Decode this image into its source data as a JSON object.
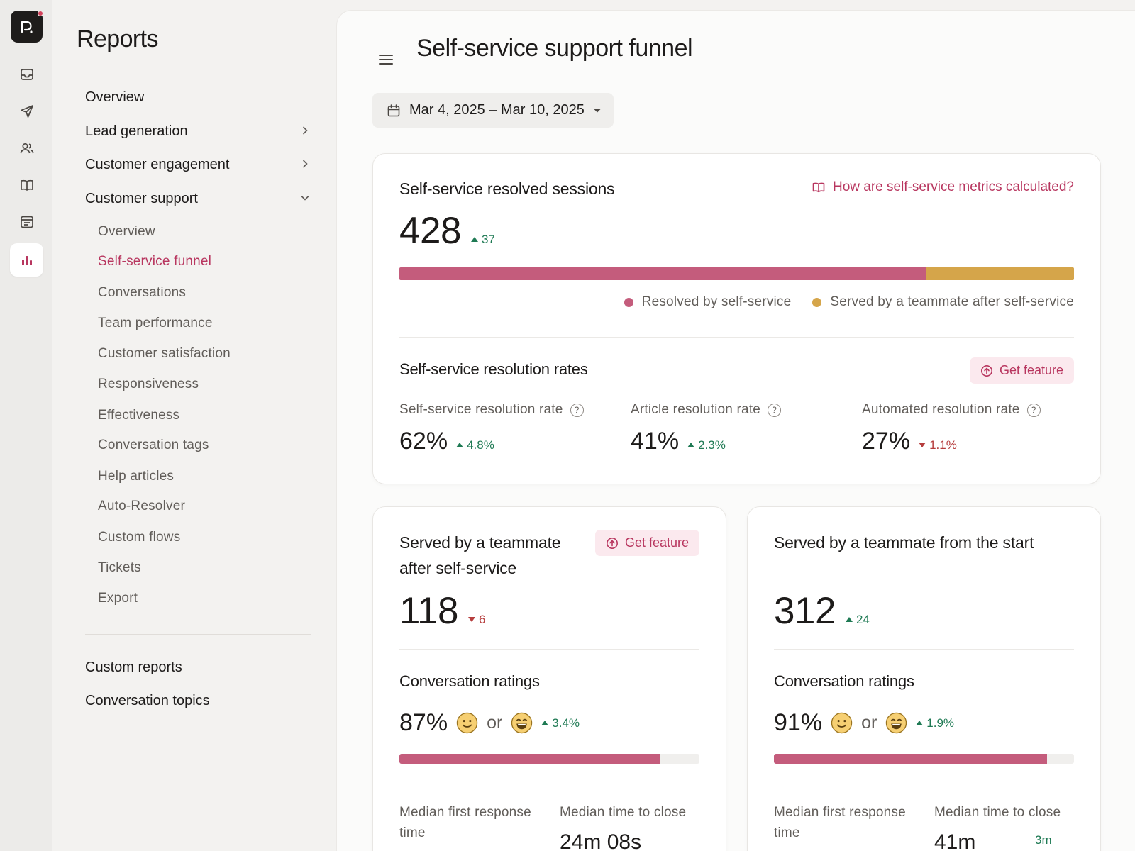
{
  "sidebar": {
    "title": "Reports",
    "top_items": [
      {
        "label": "Overview"
      },
      {
        "label": "Lead generation"
      },
      {
        "label": "Customer engagement"
      },
      {
        "label": "Customer support"
      }
    ],
    "sub_items": [
      {
        "label": "Overview"
      },
      {
        "label": "Self-service funnel"
      },
      {
        "label": "Conversations"
      },
      {
        "label": "Team performance"
      },
      {
        "label": "Customer satisfaction"
      },
      {
        "label": "Responsiveness"
      },
      {
        "label": "Effectiveness"
      },
      {
        "label": "Conversation tags"
      },
      {
        "label": "Help articles"
      },
      {
        "label": "Auto-Resolver"
      },
      {
        "label": "Custom flows"
      },
      {
        "label": "Tickets"
      },
      {
        "label": "Export"
      }
    ],
    "bottom_items": [
      {
        "label": "Custom reports"
      },
      {
        "label": "Conversation topics"
      }
    ]
  },
  "header": {
    "title": "Self-service support funnel",
    "date_range": "Mar 4, 2025 – Mar 10, 2025"
  },
  "resolved": {
    "title": "Self-service resolved sessions",
    "help_link": "How are self-service metrics calculated?",
    "value": "428",
    "delta": "37",
    "legend": [
      "Resolved by self-service",
      "Served by a teammate after self-service"
    ],
    "split_fraction": 0.78,
    "rates_title": "Self-service resolution rates",
    "get_feature": "Get feature",
    "rates": [
      {
        "label": "Self-service resolution rate",
        "value": "62%",
        "delta": "4.8%",
        "direction": "up"
      },
      {
        "label": "Article resolution rate",
        "value": "41%",
        "delta": "2.3%",
        "direction": "up"
      },
      {
        "label": "Automated resolution rate",
        "value": "27%",
        "delta": "1.1%",
        "direction": "down"
      }
    ]
  },
  "after_self_service": {
    "title_line1": "Served by a teammate",
    "title_line2": "after self-service",
    "get_feature": "Get feature",
    "value": "118",
    "delta": "6",
    "ratings_title": "Conversation ratings",
    "rating_value": "87%",
    "or_text": "or",
    "rating_delta": "3.4%",
    "rating_fraction": 0.87,
    "first_response_label_1": "Median first response",
    "first_response_label_2": "time",
    "close_label": "Median time to close",
    "close_value": "24m 08s"
  },
  "from_start": {
    "title": "Served by a teammate from the start",
    "value": "312",
    "delta": "24",
    "ratings_title": "Conversation ratings",
    "rating_value": "91%",
    "or_text": "or",
    "rating_delta": "1.9%",
    "rating_fraction": 0.91,
    "first_response_label_1": "Median first response",
    "first_response_label_2": "time",
    "close_label": "Median time to close",
    "close_value": "41m",
    "close_delta": "3m"
  },
  "colors": {
    "accent": "#b8365f",
    "self_service": "#c45c7c",
    "teammate": "#d5a54a",
    "positive": "#1f7a54",
    "negative": "#b63d3d"
  }
}
